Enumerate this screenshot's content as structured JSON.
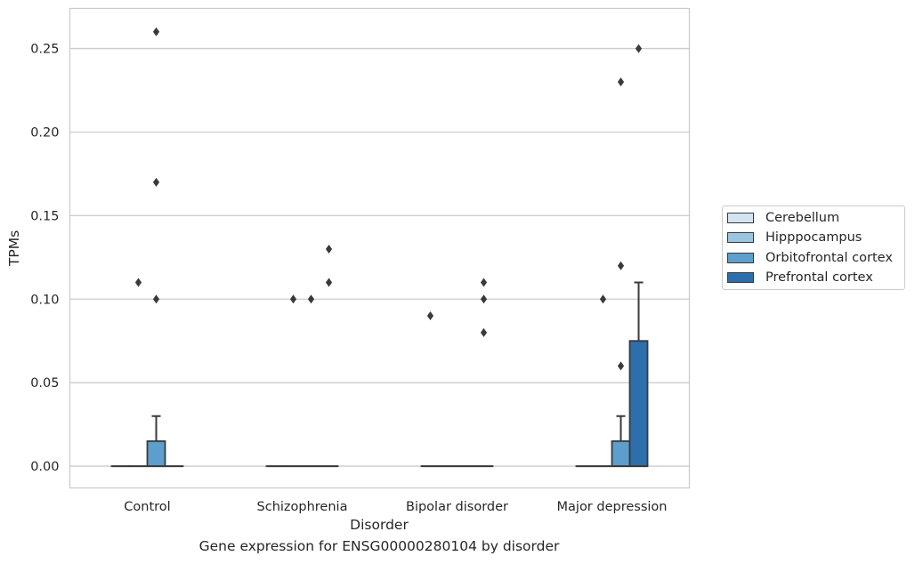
{
  "chart_data": {
    "type": "box",
    "title": "",
    "caption": "Gene expression for ENSG00000280104 by disorder",
    "xlabel": "Disorder",
    "ylabel": "TPMs",
    "ylim": [
      -0.013,
      0.274
    ],
    "yticks": [
      "0.00",
      "0.05",
      "0.10",
      "0.15",
      "0.20",
      "0.25"
    ],
    "ytick_values": [
      0,
      0.05,
      0.1,
      0.15,
      0.2,
      0.25
    ],
    "categories": [
      "Control",
      "Schizophrenia",
      "Bipolar disorder",
      "Major depression"
    ],
    "grid": "horizontal",
    "legend_position": "right",
    "series": [
      {
        "name": "Cerebellum",
        "color": "#d3e3f1",
        "boxes": [
          {
            "q1": 0,
            "median": 0,
            "q3": 0,
            "whisker_low": 0,
            "whisker_high": 0,
            "outliers": []
          },
          {
            "q1": 0,
            "median": 0,
            "q3": 0,
            "whisker_low": 0,
            "whisker_high": 0,
            "outliers": []
          },
          {
            "q1": 0,
            "median": 0,
            "q3": 0,
            "whisker_low": 0,
            "whisker_high": 0,
            "outliers": [
              0.09
            ]
          },
          {
            "q1": 0,
            "median": 0,
            "q3": 0,
            "whisker_low": 0,
            "whisker_high": 0,
            "outliers": []
          }
        ]
      },
      {
        "name": "Hipppocampus",
        "color": "#9ac6e0",
        "boxes": [
          {
            "q1": 0,
            "median": 0,
            "q3": 0,
            "whisker_low": 0,
            "whisker_high": 0,
            "outliers": [
              0.11
            ]
          },
          {
            "q1": 0,
            "median": 0,
            "q3": 0,
            "whisker_low": 0,
            "whisker_high": 0,
            "outliers": [
              0.1
            ]
          },
          {
            "q1": 0,
            "median": 0,
            "q3": 0,
            "whisker_low": 0,
            "whisker_high": 0,
            "outliers": []
          },
          {
            "q1": 0,
            "median": 0,
            "q3": 0,
            "whisker_low": 0,
            "whisker_high": 0,
            "outliers": [
              0.1
            ]
          }
        ]
      },
      {
        "name": "Orbitofrontal cortex",
        "color": "#5e9ecd",
        "boxes": [
          {
            "q1": 0,
            "median": 0,
            "q3": 0.015,
            "whisker_low": 0,
            "whisker_high": 0.03,
            "outliers": [
              0.26,
              0.17,
              0.1
            ]
          },
          {
            "q1": 0,
            "median": 0,
            "q3": 0,
            "whisker_low": 0,
            "whisker_high": 0,
            "outliers": [
              0.1
            ]
          },
          {
            "q1": 0,
            "median": 0,
            "q3": 0,
            "whisker_low": 0,
            "whisker_high": 0,
            "outliers": []
          },
          {
            "q1": 0,
            "median": 0,
            "q3": 0.015,
            "whisker_low": 0,
            "whisker_high": 0.03,
            "outliers": [
              0.23,
              0.12,
              0.06
            ]
          }
        ]
      },
      {
        "name": "Prefrontal cortex",
        "color": "#2d6fac",
        "boxes": [
          {
            "q1": 0,
            "median": 0,
            "q3": 0,
            "whisker_low": 0,
            "whisker_high": 0,
            "outliers": []
          },
          {
            "q1": 0,
            "median": 0,
            "q3": 0,
            "whisker_low": 0,
            "whisker_high": 0,
            "outliers": [
              0.13,
              0.11
            ]
          },
          {
            "q1": 0,
            "median": 0,
            "q3": 0,
            "whisker_low": 0,
            "whisker_high": 0,
            "outliers": [
              0.11,
              0.1,
              0.08
            ]
          },
          {
            "q1": 0,
            "median": 0,
            "q3": 0.075,
            "whisker_low": 0,
            "whisker_high": 0.11,
            "outliers": [
              0.25
            ]
          }
        ]
      }
    ]
  }
}
